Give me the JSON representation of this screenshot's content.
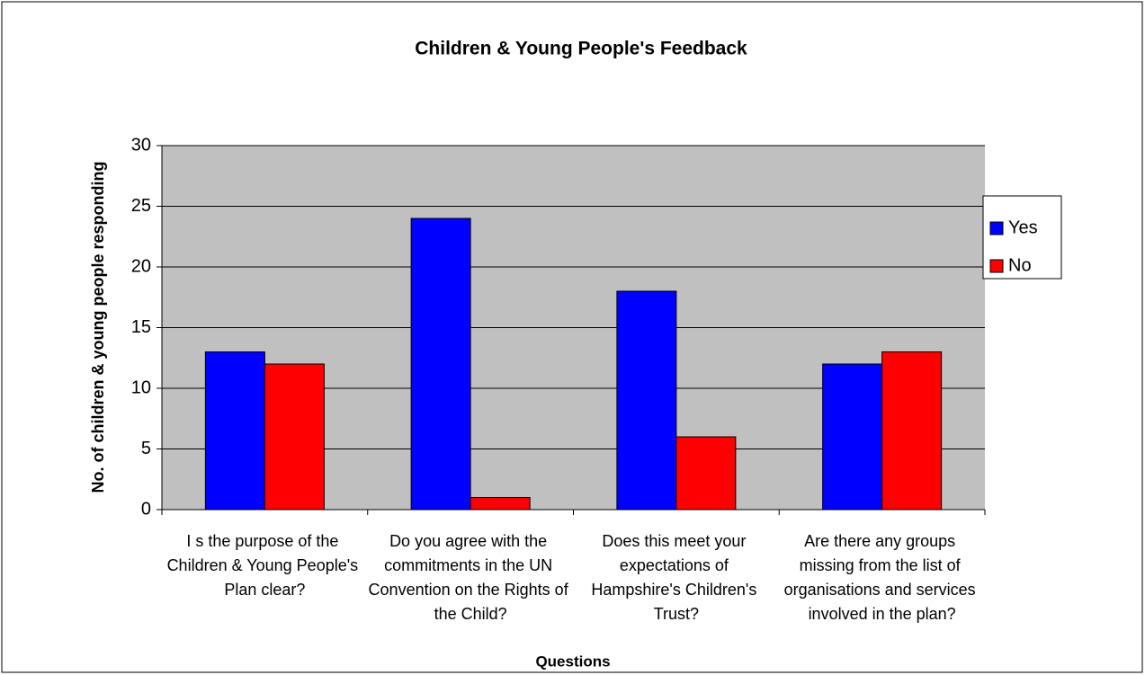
{
  "chart_data": {
    "type": "bar",
    "title": "Children & Young People's Feedback",
    "x_label": "Questions",
    "y_label": "No. of children & young people responding",
    "categories": [
      "I s the purpose of the Children & Young People's Plan clear?",
      "Do you agree with the commitments in the UN Convention on the Rights of the Child?",
      "Does this meet your expectations of Hampshire's Children's Trust?",
      "Are there any groups missing from the list of organisations and services involved in the plan?"
    ],
    "series": [
      {
        "name": "Yes",
        "color": "#0000ff",
        "values": [
          13,
          24,
          18,
          12
        ]
      },
      {
        "name": "No",
        "color": "#ff0000",
        "values": [
          12,
          1,
          6,
          13
        ]
      }
    ],
    "ylim": [
      0,
      30
    ],
    "yticks": [
      0,
      5,
      10,
      15,
      20,
      25,
      30
    ],
    "grid": true,
    "legend": "right"
  }
}
